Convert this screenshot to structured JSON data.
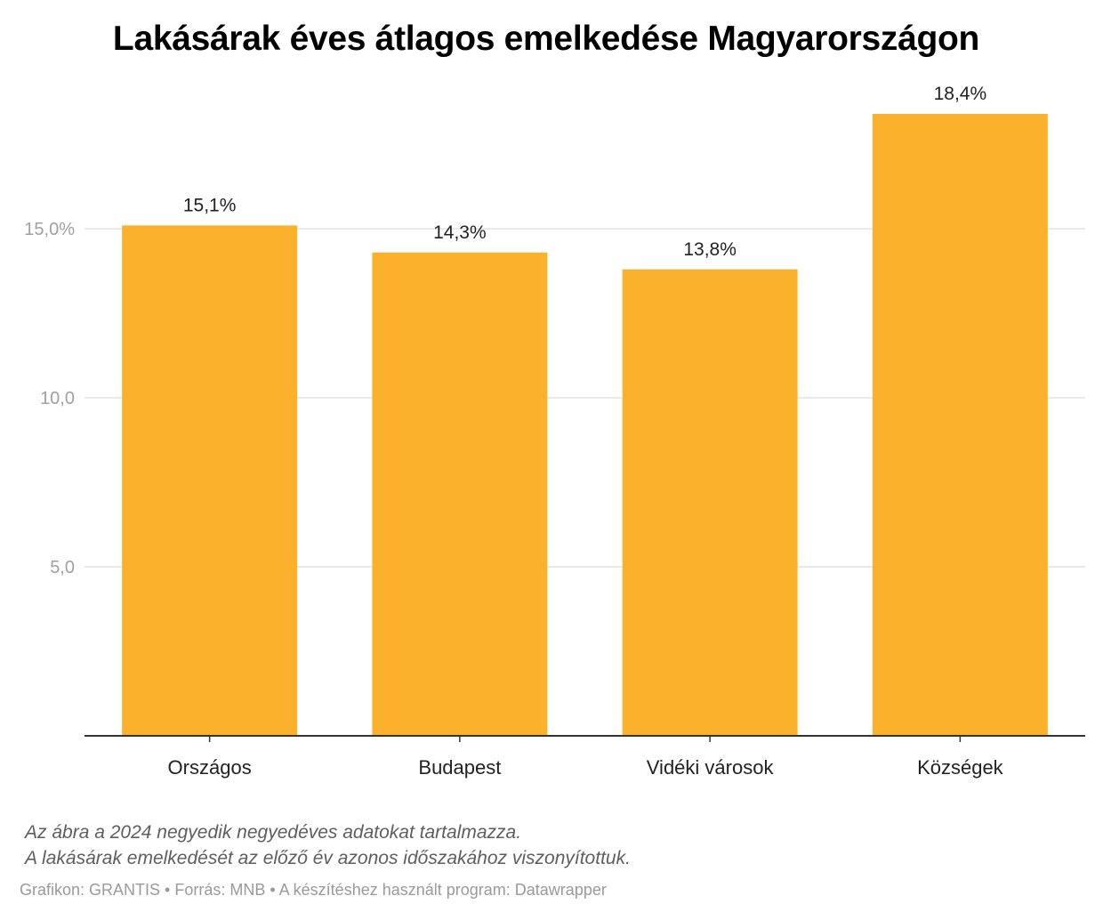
{
  "chart_data": {
    "type": "bar",
    "title": "Lakásárak éves átlagos emelkedése Magyarországon",
    "categories": [
      "Országos",
      "Budapest",
      "Vidéki városok",
      "Községek"
    ],
    "values": [
      15.1,
      14.3,
      13.8,
      18.4
    ],
    "data_labels": [
      "15,1%",
      "14,3%",
      "13,8%",
      "18,4%"
    ],
    "yticks": [
      {
        "value": 5,
        "label": "5,0"
      },
      {
        "value": 10,
        "label": "10,0"
      },
      {
        "value": 15,
        "label": "15,0%"
      }
    ],
    "ylim": [
      0,
      18.4
    ],
    "grid": true,
    "bar_color": "#fcb12d",
    "xlabel": "",
    "ylabel": ""
  },
  "notes": {
    "line1": "Az ábra a 2024 negyedik negyedéves adatokat tartalmazza.",
    "line2": "A lakásárak emelkedését az előző év azonos időszakához viszonyítottuk.",
    "credit": "Grafikon: GRANTIS • Forrás: MNB • A készítéshez használt program: Datawrapper"
  }
}
